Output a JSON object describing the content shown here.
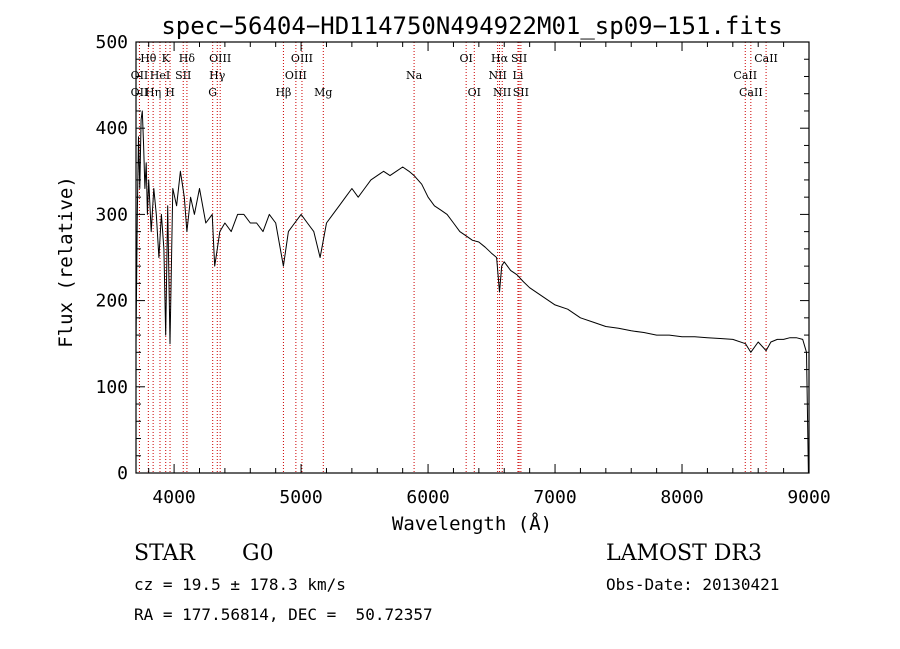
{
  "chart_data": {
    "type": "line",
    "title": "spec−56404−HD114750N494922M01_sp09−151.fits",
    "xlabel": "Wavelength (Å)",
    "ylabel": "Flux (relative)",
    "xlim": [
      3700,
      9000
    ],
    "ylim": [
      0,
      500
    ],
    "x_ticks": [
      {
        "value": 4000,
        "label": "4000"
      },
      {
        "value": 5000,
        "label": "5000"
      },
      {
        "value": 6000,
        "label": "6000"
      },
      {
        "value": 7000,
        "label": "7000"
      },
      {
        "value": 8000,
        "label": "8000"
      },
      {
        "value": 9000,
        "label": "9000"
      }
    ],
    "y_ticks": [
      {
        "value": 0,
        "label": "0"
      },
      {
        "value": 100,
        "label": "100"
      },
      {
        "value": 200,
        "label": "200"
      },
      {
        "value": 300,
        "label": "300"
      },
      {
        "value": 400,
        "label": "400"
      },
      {
        "value": 500,
        "label": "500"
      }
    ],
    "series": [
      {
        "name": "flux",
        "x": [
          3700,
          3710,
          3720,
          3730,
          3740,
          3750,
          3760,
          3770,
          3780,
          3790,
          3800,
          3820,
          3840,
          3860,
          3880,
          3900,
          3920,
          3934,
          3950,
          3968,
          3990,
          4020,
          4050,
          4080,
          4101,
          4130,
          4160,
          4200,
          4250,
          4300,
          4320,
          4340,
          4360,
          4400,
          4450,
          4500,
          4550,
          4600,
          4650,
          4700,
          4750,
          4800,
          4861,
          4900,
          4950,
          5000,
          5050,
          5100,
          5150,
          5175,
          5200,
          5250,
          5300,
          5350,
          5400,
          5450,
          5500,
          5550,
          5600,
          5650,
          5700,
          5750,
          5800,
          5850,
          5890,
          5950,
          6000,
          6050,
          6100,
          6150,
          6200,
          6250,
          6300,
          6350,
          6400,
          6450,
          6500,
          6540,
          6563,
          6580,
          6600,
          6650,
          6700,
          6750,
          6800,
          6900,
          7000,
          7100,
          7200,
          7300,
          7400,
          7500,
          7600,
          7700,
          7800,
          7900,
          8000,
          8100,
          8200,
          8300,
          8400,
          8500,
          8542,
          8600,
          8662,
          8700,
          8750,
          8800,
          8850,
          8900,
          8950,
          8980,
          8995
        ],
        "y": [
          150,
          300,
          390,
          330,
          410,
          420,
          380,
          330,
          360,
          300,
          340,
          280,
          330,
          300,
          250,
          300,
          260,
          160,
          310,
          150,
          330,
          310,
          350,
          320,
          280,
          320,
          300,
          330,
          290,
          300,
          240,
          260,
          280,
          290,
          280,
          300,
          300,
          290,
          290,
          280,
          300,
          290,
          240,
          280,
          290,
          300,
          290,
          280,
          250,
          270,
          290,
          300,
          310,
          320,
          330,
          320,
          330,
          340,
          345,
          350,
          345,
          350,
          355,
          350,
          345,
          335,
          320,
          310,
          305,
          300,
          290,
          280,
          275,
          270,
          268,
          262,
          255,
          250,
          210,
          240,
          245,
          235,
          230,
          222,
          215,
          205,
          195,
          190,
          180,
          175,
          170,
          168,
          165,
          163,
          160,
          160,
          158,
          158,
          157,
          156,
          155,
          150,
          140,
          152,
          142,
          152,
          155,
          155,
          157,
          157,
          155,
          140,
          0
        ]
      }
    ],
    "line_markers": [
      {
        "label": "Hθ",
        "wavelength": 3797,
        "row": 0
      },
      {
        "label": "OII",
        "wavelength": 3727,
        "row": 1
      },
      {
        "label": "OII",
        "wavelength": 3727,
        "row": 2
      },
      {
        "label": "Hη",
        "wavelength": 3835,
        "row": 2
      },
      {
        "label": "K",
        "wavelength": 3934,
        "row": 0
      },
      {
        "label": "HeI",
        "wavelength": 3889,
        "row": 1
      },
      {
        "label": "H",
        "wavelength": 3968,
        "row": 2
      },
      {
        "label": "Hδ",
        "wavelength": 4101,
        "row": 0
      },
      {
        "label": "SII",
        "wavelength": 4072,
        "row": 1
      },
      {
        "label": "OIII",
        "wavelength": 4363,
        "row": 0
      },
      {
        "label": "Hγ",
        "wavelength": 4340,
        "row": 1
      },
      {
        "label": "G",
        "wavelength": 4304,
        "row": 2
      },
      {
        "label": "Hβ",
        "wavelength": 4861,
        "row": 2
      },
      {
        "label": "OIII",
        "wavelength": 5007,
        "row": 0
      },
      {
        "label": "OIII",
        "wavelength": 4959,
        "row": 1
      },
      {
        "label": "Mg",
        "wavelength": 5175,
        "row": 2
      },
      {
        "label": "Na",
        "wavelength": 5890,
        "row": 1
      },
      {
        "label": "OI",
        "wavelength": 6300,
        "row": 0
      },
      {
        "label": "OI",
        "wavelength": 6364,
        "row": 2
      },
      {
        "label": "Hα",
        "wavelength": 6563,
        "row": 0
      },
      {
        "label": "NII",
        "wavelength": 6548,
        "row": 1
      },
      {
        "label": "NII",
        "wavelength": 6584,
        "row": 2
      },
      {
        "label": "SII",
        "wavelength": 6717,
        "row": 0
      },
      {
        "label": "Li",
        "wavelength": 6708,
        "row": 1
      },
      {
        "label": "SII",
        "wavelength": 6731,
        "row": 2
      },
      {
        "label": "CaII",
        "wavelength": 8662,
        "row": 0
      },
      {
        "label": "CaII",
        "wavelength": 8498,
        "row": 1
      },
      {
        "label": "CaII",
        "wavelength": 8542,
        "row": 2
      }
    ],
    "colors": {
      "axes": "#000000",
      "line": "#000000",
      "marker_line": "#cc0000",
      "background": "#ffffff"
    }
  },
  "info": {
    "class": "STAR",
    "subclass": "G0",
    "survey": "LAMOST DR3",
    "redshift": "cz = 19.5 ± 178.3 km/s",
    "obs_date": "Obs-Date: 20130421",
    "coords": "RA = 177.56814, DEC =  50.72357"
  }
}
